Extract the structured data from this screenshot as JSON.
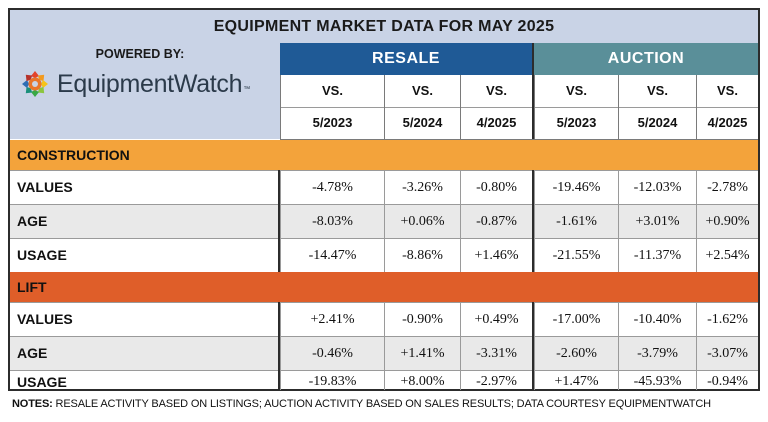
{
  "title": "EQUIPMENT MARKET DATA FOR MAY 2025",
  "brand": {
    "powered_by": "POWERED BY:",
    "logo_text": "EquipmentWatch",
    "logo_tm": "™",
    "icon": "gear-flower-logo-icon"
  },
  "groups": {
    "resale": "RESALE",
    "auction": "AUCTION"
  },
  "columns": [
    {
      "vs": "VS.",
      "date": "5/2023"
    },
    {
      "vs": "VS.",
      "date": "5/2024"
    },
    {
      "vs": "VS.",
      "date": "4/2025"
    },
    {
      "vs": "VS.",
      "date": "5/2023"
    },
    {
      "vs": "VS.",
      "date": "5/2024"
    },
    {
      "vs": "VS.",
      "date": "4/2025"
    }
  ],
  "sections": [
    {
      "name": "CONSTRUCTION",
      "rows": [
        {
          "label": "VALUES",
          "values": [
            "-4.78%",
            "-3.26%",
            "-0.80%",
            "-19.46%",
            "-12.03%",
            "-2.78%"
          ]
        },
        {
          "label": "AGE",
          "values": [
            "-8.03%",
            "+0.06%",
            "-0.87%",
            "-1.61%",
            "+3.01%",
            "+0.90%"
          ]
        },
        {
          "label": "USAGE",
          "values": [
            "-14.47%",
            "-8.86%",
            "+1.46%",
            "-21.55%",
            "-11.37%",
            "+2.54%"
          ]
        }
      ]
    },
    {
      "name": "LIFT",
      "rows": [
        {
          "label": "VALUES",
          "values": [
            "+2.41%",
            "-0.90%",
            "+0.49%",
            "-17.00%",
            "-10.40%",
            "-1.62%"
          ]
        },
        {
          "label": "AGE",
          "values": [
            "-0.46%",
            "+1.41%",
            "-3.31%",
            "-2.60%",
            "-3.79%",
            "-3.07%"
          ]
        },
        {
          "label": "USAGE",
          "values": [
            "-19.83%",
            "+8.00%",
            "-2.97%",
            "+1.47%",
            "-45.93%",
            "-0.94%"
          ]
        }
      ]
    }
  ],
  "notes": {
    "prefix": "NOTES:",
    "text": " RESALE ACTIVITY BASED ON LISTINGS; AUCTION ACTIVITY BASED ON SALES RESULTS; DATA COURTESY EQUIPMENTWATCH"
  },
  "colors": {
    "header_bg": "#c9d3e6",
    "resale": "#1f5a96",
    "auction": "#5a8f99",
    "construction": "#f3a33b",
    "lift": "#df5e29"
  }
}
